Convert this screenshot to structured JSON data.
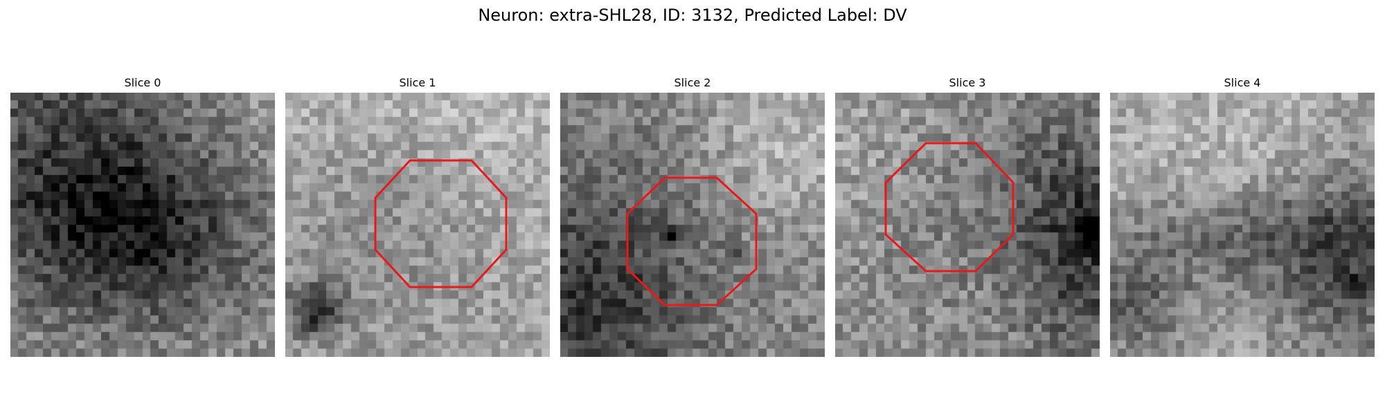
{
  "title": "Neuron: extra-SHL28, ID: 3132, Predicted Label: DV",
  "colors": {
    "roi_outline": "#e8191b"
  },
  "panels": [
    {
      "title": "Slice 0",
      "texture": {
        "base": 150,
        "noise": 38,
        "seed": 11,
        "dark_bands": [
          [
            0.33,
            0.2,
            0.55,
            0.6,
            0.12,
            0.05,
            110
          ],
          [
            0.48,
            0.55,
            0.5,
            0.3,
            0.08,
            0.09,
            80
          ]
        ],
        "light_bands": [
          [
            0.6,
            0.1,
            0.6,
            0.4,
            0.12,
            0.08,
            45
          ]
        ],
        "dark_spots": []
      },
      "has_roi": false
    },
    {
      "title": "Slice 1",
      "texture": {
        "base": 160,
        "noise": 34,
        "seed": 23,
        "dark_bands": [
          [
            0.47,
            0.47,
            0.27,
            0.27,
            0.2,
            0.2,
            25
          ]
        ],
        "light_bands": [
          [
            0.8,
            0.2,
            0.15,
            0.5,
            0.2,
            0.2,
            25
          ],
          [
            0.2,
            0.05,
            0.6,
            0.25,
            0.15,
            0.1,
            20
          ]
        ],
        "dark_spots": [
          [
            0.12,
            0.82,
            0.07,
            0.07,
            120
          ]
        ]
      },
      "has_roi": true
    },
    {
      "title": "Slice 2",
      "texture": {
        "base": 135,
        "noise": 36,
        "seed": 37,
        "dark_bands": [
          [
            0.08,
            0.8,
            0.3,
            0.3,
            0.12,
            0.15,
            80
          ],
          [
            0.5,
            0.5,
            0.25,
            0.25,
            0.2,
            0.2,
            18
          ]
        ],
        "light_bands": [
          [
            0.85,
            0.2,
            0.2,
            0.25,
            0.15,
            0.15,
            50
          ]
        ],
        "dark_spots": [
          [
            0.43,
            0.53,
            0.02,
            0.02,
            120
          ],
          [
            0.65,
            0.6,
            0.02,
            0.02,
            70
          ]
        ]
      },
      "has_roi": true
    },
    {
      "title": "Slice 3",
      "texture": {
        "base": 150,
        "noise": 40,
        "seed": 53,
        "dark_bands": [
          [
            0.35,
            0.45,
            0.3,
            0.3,
            0.2,
            0.2,
            25
          ],
          [
            0.93,
            0.55,
            0.15,
            0.35,
            0.1,
            0.15,
            95
          ]
        ],
        "light_bands": [
          [
            0.1,
            0.25,
            0.2,
            0.3,
            0.12,
            0.15,
            25
          ]
        ],
        "dark_spots": [
          [
            0.98,
            0.52,
            0.03,
            0.05,
            110
          ]
        ]
      },
      "has_roi": true
    },
    {
      "title": "Slice 4",
      "texture": {
        "base": 160,
        "noise": 36,
        "seed": 71,
        "dark_bands": [
          [
            0.5,
            0.55,
            0.4,
            0.12,
            0.15,
            0.06,
            55
          ],
          [
            0.9,
            0.65,
            0.18,
            0.28,
            0.1,
            0.12,
            80
          ],
          [
            0.1,
            0.8,
            0.12,
            0.1,
            0.08,
            0.08,
            60
          ]
        ],
        "light_bands": [
          [
            0.5,
            0.2,
            0.4,
            0.2,
            0.2,
            0.1,
            20
          ]
        ],
        "dark_spots": [
          [
            0.93,
            0.73,
            0.03,
            0.02,
            90
          ]
        ]
      },
      "has_roi": false
    }
  ]
}
